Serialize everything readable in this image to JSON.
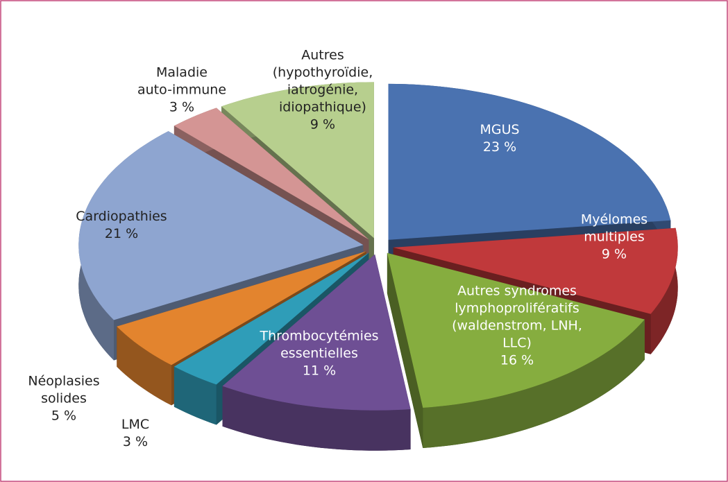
{
  "chart_data": {
    "type": "pie",
    "categories": [
      "MGUS",
      "Myélomes multiples",
      "Autres syndromes\nlymphoprolifératifs\n(waldenstrom, LNH,\nLLC)",
      "Thrombocytémies\nessentielles",
      "LMC",
      "Néoplasies\nsolides",
      "Cardiopathies",
      "Maladie\nauto-immune",
      "Autres\n(hypothyroïdie,\niatrogénie,\nidiopathique)"
    ],
    "values": [
      23,
      9,
      16,
      11,
      3,
      5,
      21,
      3,
      9
    ],
    "value_labels": [
      "23 %",
      "9 %",
      "16 %",
      "11 %",
      "3 %",
      "5 %",
      "21 %",
      "3 %",
      "9 %"
    ],
    "colors": [
      "#4a72b0",
      "#c0393b",
      "#86ad3f",
      "#6e4f94",
      "#2f9db8",
      "#e3842e",
      "#8ea5d0",
      "#d49594",
      "#b7cf8e"
    ]
  }
}
